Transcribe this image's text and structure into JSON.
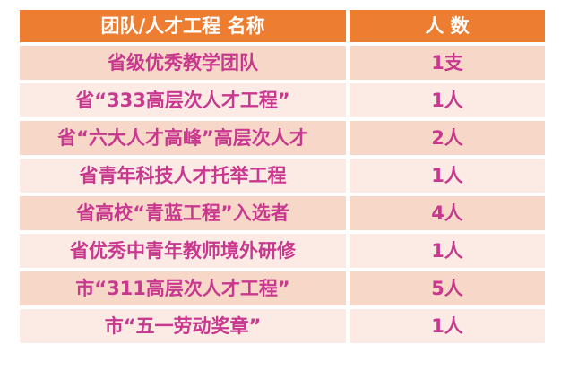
{
  "colors": {
    "page_bg": "#FFFFFF",
    "header_bg": "#ED7D31",
    "header_text": "#FFFFFF",
    "row_dark_bg": "#F7D8C8",
    "row_light_bg": "#FCEBE5",
    "row_text": "#C9388F"
  },
  "table": {
    "header": {
      "name_label": "团队/人才工程 名称",
      "count_label": "人 数"
    },
    "rows": [
      {
        "name": "省级优秀教学团队",
        "count": "1支"
      },
      {
        "name": "省“333高层次人才工程”",
        "count": "1人"
      },
      {
        "name": "省“六大人才高峰”高层次人才",
        "count": "2人"
      },
      {
        "name": "省青年科技人才托举工程",
        "count": "1人"
      },
      {
        "name": "省高校“青蓝工程”入选者",
        "count": "4人"
      },
      {
        "name": "省优秀中青年教师境外研修",
        "count": "1人"
      },
      {
        "name": "市“311高层次人才工程”",
        "count": "5人"
      },
      {
        "name": "市“五一劳动奖章”",
        "count": "1人"
      }
    ]
  }
}
